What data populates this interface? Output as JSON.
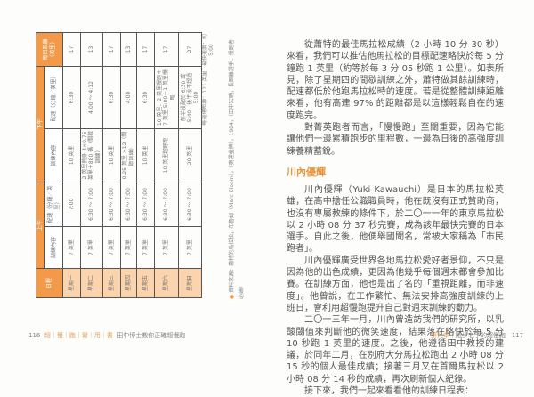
{
  "left_page": {
    "table": {
      "header": {
        "schedule": "日程",
        "morning": "上午",
        "afternoon": "下午",
        "content": "訓練內容",
        "pace": "配速（分鐘／英里）",
        "daily_distance": "每日距離（英里）"
      },
      "rows": [
        {
          "day": "星期一",
          "am_content": "7 英里",
          "am_pace": "7:00",
          "pm_content": "10 英里",
          "pm_pace": "6:30",
          "distance": "17"
        },
        {
          "day": "星期二",
          "am_content": "7 英里",
          "am_pace": "6:30 ～ 7:00",
          "pm_content": "2 英里熱身 4×0.75 英里＋880 碼（間歇訓練）",
          "pm_pace": "4:00 ～ 4:12",
          "distance": "13"
        },
        {
          "day": "星期三",
          "am_content": "7 英里",
          "am_pace": "6:30 ～ 7:00",
          "pm_content": "10 英里",
          "pm_pace": "6:30",
          "distance": "17"
        },
        {
          "day": "星期四",
          "am_content": "7 英里",
          "am_pace": "6:30 ～ 7:00",
          "pm_content": "0.25 英里 ×12（間歇訓練）",
          "pm_pace": "4:00",
          "distance": "13"
        },
        {
          "day": "星期五",
          "am_content": "7 英里",
          "am_pace": "6:30 ～ 7:00",
          "pm_content": "10 英里",
          "pm_pace": "6:30",
          "distance": "17"
        },
        {
          "day": "星期六",
          "am_content": "7 英里",
          "am_pace": "6:30 ～ 7:00",
          "pm_content": "10 英里越野跑",
          "pm_pace": "10 英里：2 英里慢跑＋7 英里 5:00＋1 英里慢跑",
          "distance": "17"
        },
        {
          "day": "星期日",
          "am_content": "7 英里",
          "am_pace": "6:30 ～ 7:00",
          "pm_content": "20 英里",
          "pm_pace": "前半段配於 6:30 或 5:40，後半段不超過 5:00",
          "distance": "27"
        }
      ],
      "weekly_total": "每週總距離：121 英里",
      "fastest": "最快速度：約 5:00"
    },
    "footnote": "資料來源：蕭特的馬拉松，布魯姆（Marc Bloom），《奧運金牌》，1984，（田中宏暁，長距離選手．慢跑者必讀）",
    "footer": {
      "page_number": "116",
      "book_series": "超｜慢｜跑｜實｜用｜書",
      "book_title": "田中博士教你正確超慢跑"
    }
  },
  "right_page": {
    "paragraphs_1": [
      "從蕭特的最佳馬拉松成績（2 小時 10 分 30 秒）來看，我們可以推估他馬拉松的目標配速略快於每 5 分鐘跑 1 英里（約等於每 3 分 05 秒跑 1 公里）。如表所見，除了星期四的間歇訓練之外，蕭特做其餘訓練時，配速都低於他跑馬拉松時的速度。若是從整體訓練距離來看，他有高達 97% 的距離都是以這樣輕鬆自在的速度跑完。",
      "對菁英跑者而言，「慢慢跑」至關重要，因為它能讓他們一邊累積跑步的里程數，一邊為日後的高強度訓練養精蓄銳。"
    ],
    "heading": "川內優輝",
    "paragraphs_2": [
      "川內優輝（Yuki Kawauchi）是日本的馬拉松英雄，在高中擔任公職職員時，他在既沒有正式贊助商，也沒有專屬教練的條件下，於二〇一一年的東京馬拉松以 2 小時 08 分 37 秒完賽，成為該年最快完賽的日本選手。自此之後，他便舉國聞名，常被大家稱為「市民跑者」。",
      "川內優輝廣受世界各地馬拉松愛好者景仰，不只是因為他的出色成績，更因為他幾乎每個週末都會參加比賽。在訓練方面，他也是出了名的「重視距離，而非速度」。他曾說，在工作繁忙、無法安排高強度訓練的上班日，會利用超慢跑提升自己對週末訓練的動力。",
      "二〇一三年一月，川內曾造訪我們的研究所，以乳酸閾值來判斷他的微笑速度，結果落在略快於每 5 分 10 秒跑 1 英里的速度。之後，他遵循田中教授的建議，於同年二月，在別府大分馬拉松跑出 2 小時 08 分 15 秒的個人最佳成績；接著三月又在首爾馬拉松以 2 小時 08 分 14 秒的成績，再次刷新個人紀錄。",
      "接下來，我們一起來看看他的訓練日程表："
    ],
    "footer": {
      "chapter": "第九章",
      "chapter_title": "｜跑步老手的超慢跑",
      "page_number": "117"
    }
  },
  "colors": {
    "accent": "#f39a4a",
    "accent_light": "#fbd3ac",
    "text": "#555555"
  }
}
